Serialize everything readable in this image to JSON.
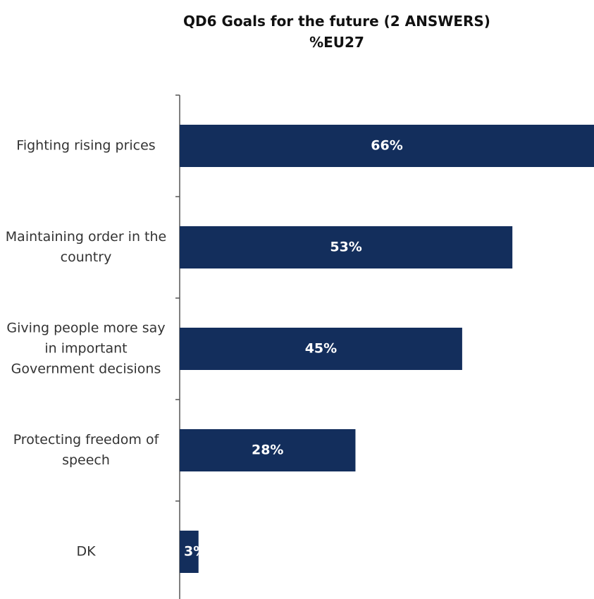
{
  "chart_data": {
    "type": "hbar",
    "title": "QD6 Goals for the future (2 ANSWERS)",
    "subtitle": "%EU27",
    "categories": [
      "Fighting rising prices",
      "Maintaining order in the country",
      "Giving people more say in important Government decisions",
      "Protecting freedom of speech",
      "DK"
    ],
    "values": [
      66,
      53,
      45,
      28,
      3
    ],
    "value_labels": [
      "66%",
      "53%",
      "45%",
      "28%",
      "3%"
    ],
    "color": "#132e5c"
  }
}
